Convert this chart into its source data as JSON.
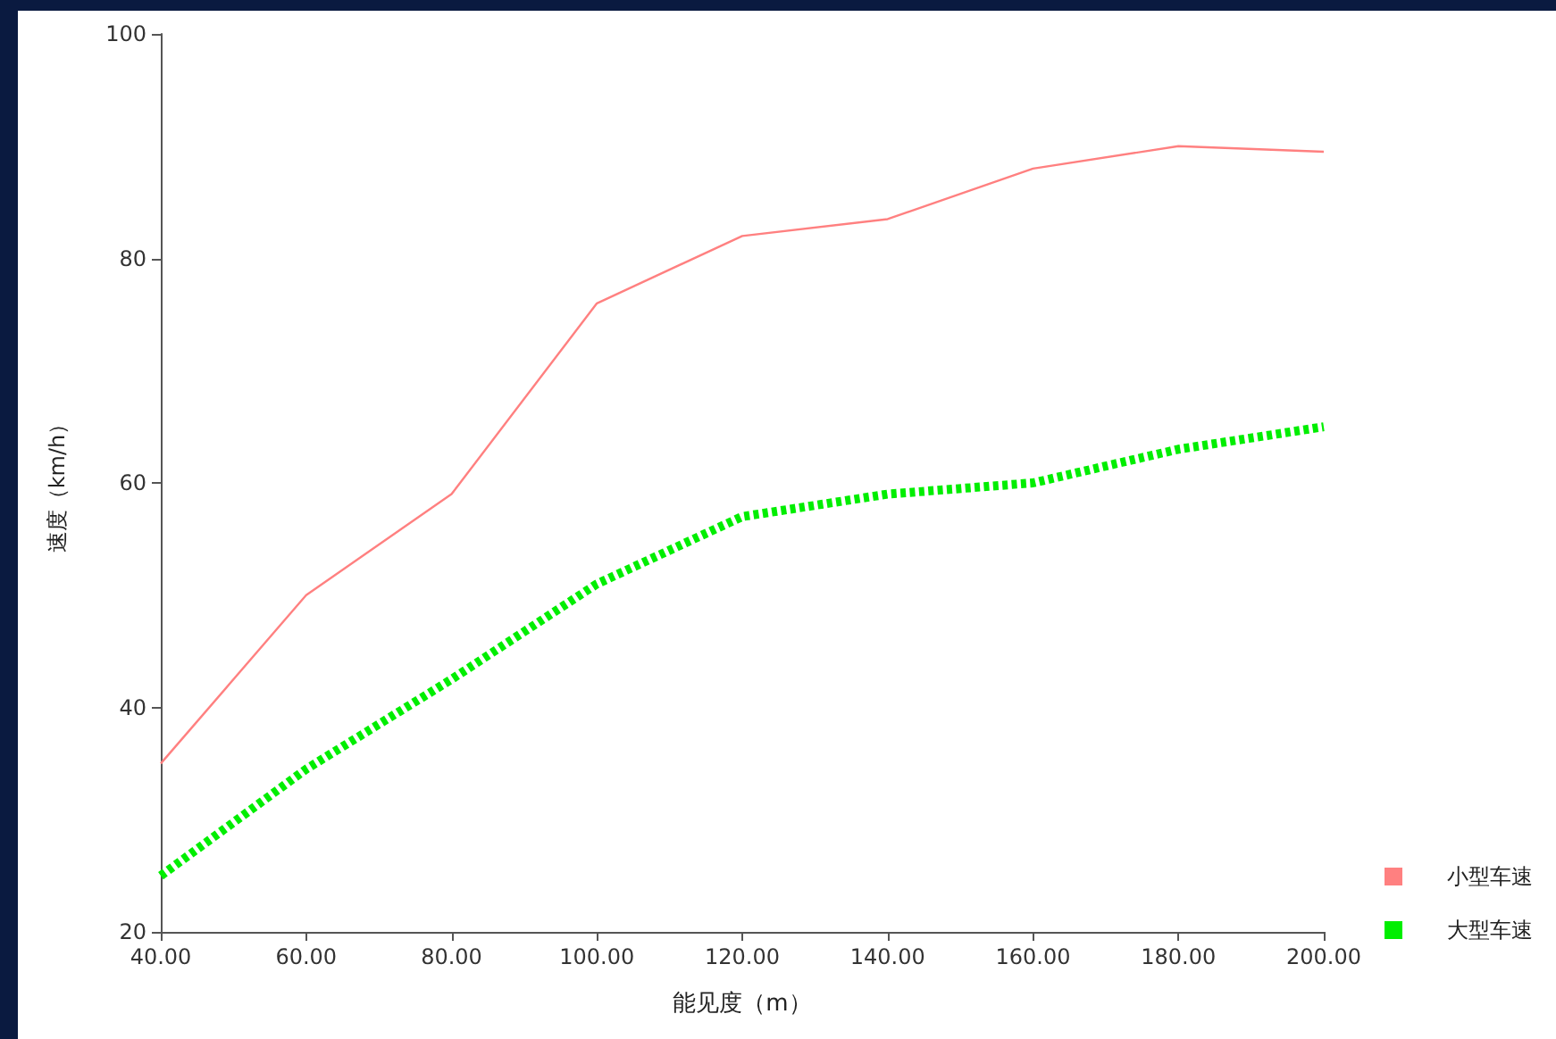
{
  "chart_data": {
    "type": "line",
    "xlabel": "能见度（m）",
    "ylabel": "速度（km/h）",
    "x": [
      40,
      60,
      80,
      100,
      120,
      140,
      160,
      180,
      200
    ],
    "series": [
      {
        "name": "小型车速",
        "color": "#ff8080",
        "line_style": "solid",
        "values": [
          35,
          50,
          59,
          76,
          82,
          83.5,
          88,
          90,
          89.5
        ]
      },
      {
        "name": "大型车速",
        "color": "#00ee00",
        "line_style": "dashed",
        "values": [
          25,
          34.5,
          42.5,
          51,
          57,
          59,
          60,
          63,
          65
        ]
      }
    ],
    "xlim": [
      40,
      200
    ],
    "xticks": [
      {
        "value": 40,
        "label": "40.00"
      },
      {
        "value": 60,
        "label": "60.00"
      },
      {
        "value": 80,
        "label": "80.00"
      },
      {
        "value": 100,
        "label": "100.00"
      },
      {
        "value": 120,
        "label": "120.00"
      },
      {
        "value": 140,
        "label": "140.00"
      },
      {
        "value": 160,
        "label": "160.00"
      },
      {
        "value": 180,
        "label": "180.00"
      },
      {
        "value": 200,
        "label": "200.00"
      }
    ],
    "ylim": [
      20,
      100
    ],
    "yticks": [
      20,
      40,
      60,
      80,
      100
    ],
    "grid": false,
    "legend": "bottom right",
    "marker": "none"
  }
}
